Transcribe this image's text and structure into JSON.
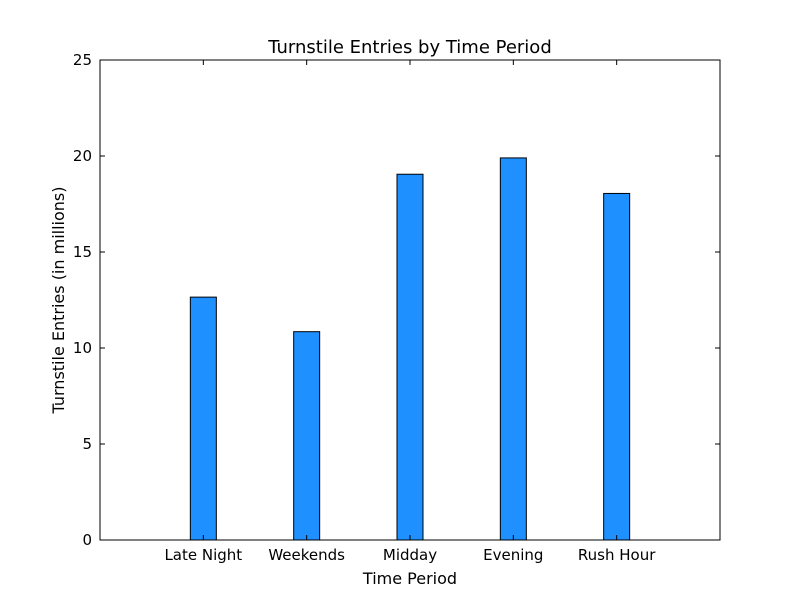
{
  "chart_data": {
    "type": "bar",
    "title": "Turnstile Entries by Time Period",
    "xlabel": "Time Period",
    "ylabel": "Turnstile Entries (in millions)",
    "categories": [
      "Late Night",
      "Weekends",
      "Midday",
      "Evening",
      "Rush Hour"
    ],
    "values": [
      12.65,
      10.85,
      19.05,
      19.9,
      18.05
    ],
    "ylim": [
      0,
      25
    ],
    "yticks": [
      0,
      5,
      10,
      15,
      20,
      25
    ],
    "grid": false,
    "legend": "none",
    "bar_color": "#1e90ff"
  }
}
